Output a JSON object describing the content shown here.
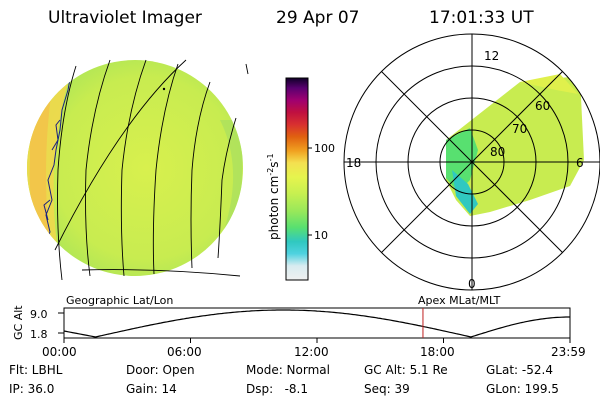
{
  "header": {
    "instrument": "Ultraviolet Imager",
    "date": "29 Apr 07",
    "time": "17:01:33 UT"
  },
  "colorbar": {
    "unit_label": "photon cm",
    "unit_exp1": "-2",
    "unit_s": "s",
    "unit_exp2": "-1",
    "ticks": [
      "100",
      "10"
    ],
    "colors": [
      "#f0f0f0",
      "#d8ecf0",
      "#4fd2e0",
      "#30c8c0",
      "#58e070",
      "#98e85a",
      "#c8f050",
      "#e6f44e",
      "#f4e050",
      "#f0a020",
      "#e06010",
      "#d83030",
      "#c01040",
      "#a00070",
      "#5a0070",
      "#100028"
    ]
  },
  "polar": {
    "mlt_labels": [
      "12",
      "18",
      "6",
      "0"
    ],
    "lat_labels": [
      "60",
      "70",
      "80"
    ]
  },
  "geo_panel": {
    "label": "Geographic Lat/Lon"
  },
  "orbit": {
    "ylabel": "GC Alt",
    "yticks": [
      "9.0",
      "1.8"
    ],
    "right_label": "Apex MLat/MLT",
    "xticks": [
      "00:00",
      "06:00",
      "12:00",
      "18:00",
      "23:59"
    ],
    "current_time_hours": 17.0258,
    "marker_color": "#c02020"
  },
  "info": {
    "col1": [
      "Flt: LBHL",
      "IP: 36.0"
    ],
    "col2": [
      "Door: Open",
      "Gain: 14"
    ],
    "col3": [
      "Mode: Normal",
      "Dsp:   -8.1"
    ],
    "col4": [
      "GC Alt: 5.1 Re",
      "Seq: 39"
    ],
    "col5": [
      "GLat: -52.4",
      "GLon: 199.5"
    ]
  }
}
